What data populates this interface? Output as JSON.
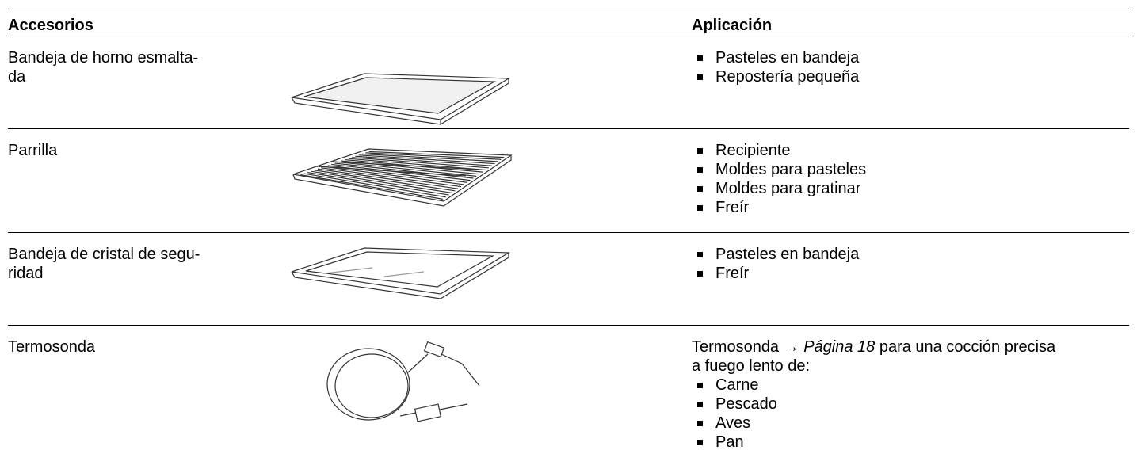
{
  "header": {
    "col1": "Accesorios",
    "col2": "Aplicación"
  },
  "rows": [
    {
      "name": [
        "Bandeja de horno esmalta-",
        "da"
      ],
      "uses": [
        "Pasteles en bandeja",
        "Repostería pequeña"
      ]
    },
    {
      "name": [
        "Parrilla"
      ],
      "uses": [
        "Recipiente",
        "Moldes para pasteles",
        "Moldes para gratinar",
        "Freír"
      ]
    },
    {
      "name": [
        "Bandeja de cristal de segu-",
        "ridad"
      ],
      "uses": [
        "Pasteles en bandeja",
        "Freír"
      ]
    },
    {
      "name": [
        "Termosonda"
      ],
      "intro": {
        "text": "Termosonda",
        "arrow": "→",
        "link": "Página 18",
        "rest": "para una cocción precisa a fuego lento de:"
      },
      "uses": [
        "Carne",
        "Pescado",
        "Aves",
        "Pan"
      ]
    }
  ]
}
